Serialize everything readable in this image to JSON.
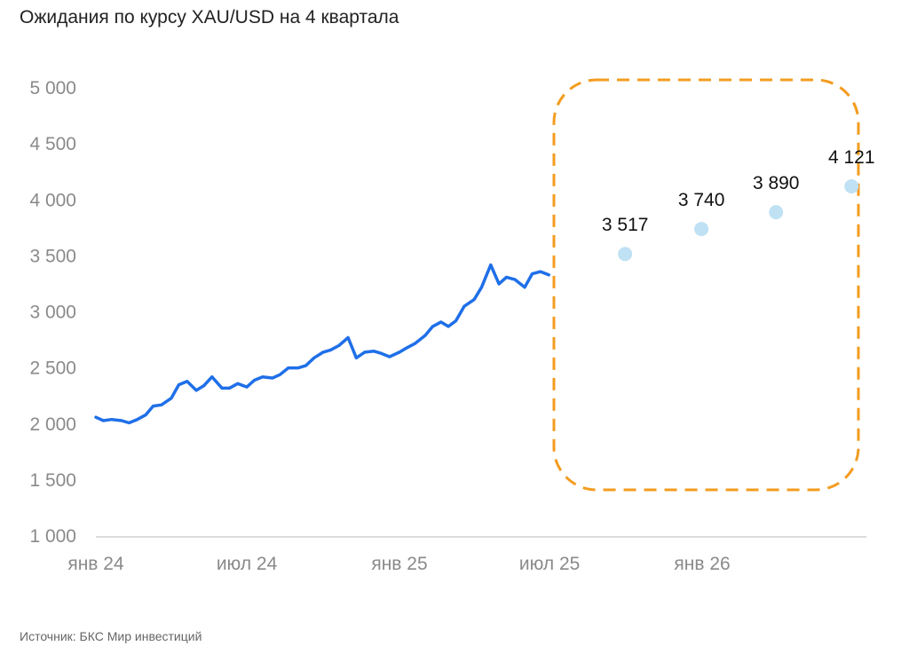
{
  "title": "Ожидания по курсу XAU/USD на 4 квартала",
  "source": "Источник: БКС Мир инвестиций",
  "colors": {
    "line": "#1f6fe8",
    "forecast_point": "#bfe1f3",
    "forecast_box": "#f39c1f",
    "axis": "#d0d0d0",
    "tick_text": "#8a8a8a"
  },
  "chart_data": {
    "type": "line",
    "title": "Ожидания по курсу XAU/USD на 4 квартала",
    "xlabel": "",
    "ylabel": "",
    "ylim": [
      1000,
      5000
    ],
    "yticks": [
      1000,
      1500,
      2000,
      2500,
      3000,
      3500,
      4000,
      4500,
      5000
    ],
    "ytick_labels": [
      "1 000",
      "1 500",
      "2 000",
      "2 500",
      "3 000",
      "3 500",
      "4 000",
      "4 500",
      "5 000"
    ],
    "xlim": [
      "2024-01-01",
      "2026-06-15"
    ],
    "xticks": [
      "2024-01-01",
      "2024-07-01",
      "2025-01-01",
      "2025-07-01",
      "2026-01-01"
    ],
    "xtick_labels": [
      "янв 24",
      "июл 24",
      "янв 25",
      "июл 25",
      "янв 26"
    ],
    "grid": false,
    "series": [
      {
        "kind": "line",
        "x": [
          "2024-01-01",
          "2024-01-10",
          "2024-01-20",
          "2024-02-01",
          "2024-02-10",
          "2024-02-20",
          "2024-03-01",
          "2024-03-10",
          "2024-03-20",
          "2024-04-01",
          "2024-04-10",
          "2024-04-20",
          "2024-05-01",
          "2024-05-10",
          "2024-05-20",
          "2024-06-01",
          "2024-06-10",
          "2024-06-20",
          "2024-07-01",
          "2024-07-10",
          "2024-07-20",
          "2024-08-01",
          "2024-08-10",
          "2024-08-20",
          "2024-09-01",
          "2024-09-10",
          "2024-09-20",
          "2024-10-01",
          "2024-10-10",
          "2024-10-20",
          "2024-10-31",
          "2024-11-10",
          "2024-11-20",
          "2024-12-01",
          "2024-12-10",
          "2024-12-20",
          "2025-01-01",
          "2025-01-10",
          "2025-01-20",
          "2025-02-01",
          "2025-02-10",
          "2025-02-20",
          "2025-03-01",
          "2025-03-10",
          "2025-03-20",
          "2025-04-01",
          "2025-04-10",
          "2025-04-21",
          "2025-05-01",
          "2025-05-10",
          "2025-05-20",
          "2025-06-01",
          "2025-06-10",
          "2025-06-20",
          "2025-06-30"
        ],
        "y": [
          2060,
          2030,
          2040,
          2030,
          2010,
          2040,
          2080,
          2160,
          2170,
          2230,
          2350,
          2380,
          2300,
          2340,
          2420,
          2320,
          2320,
          2360,
          2330,
          2390,
          2420,
          2410,
          2440,
          2500,
          2500,
          2520,
          2590,
          2640,
          2660,
          2700,
          2770,
          2590,
          2640,
          2650,
          2630,
          2600,
          2640,
          2680,
          2720,
          2790,
          2870,
          2910,
          2870,
          2920,
          3050,
          3110,
          3220,
          3420,
          3250,
          3310,
          3290,
          3220,
          3340,
          3360,
          3330
        ]
      },
      {
        "kind": "forecast",
        "x": [
          "2025-09-30",
          "2025-12-31",
          "2026-03-31",
          "2026-06-30"
        ],
        "values": [
          3517,
          3740,
          3890,
          4121
        ],
        "labels": [
          "3 517",
          "3 740",
          "3 890",
          "4 121"
        ]
      }
    ]
  }
}
